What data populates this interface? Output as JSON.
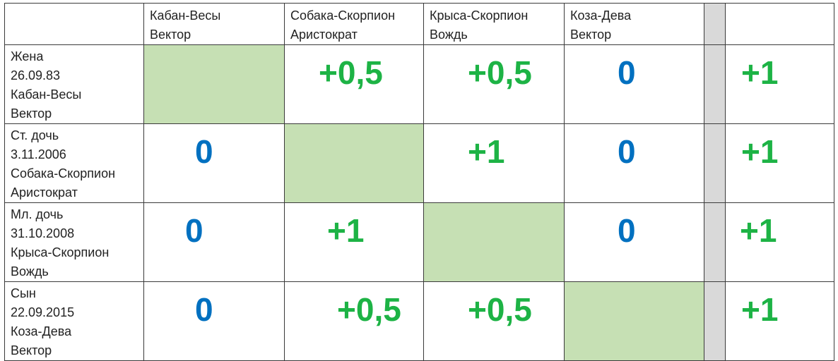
{
  "header": {
    "cols": [
      {
        "line1": "Кабан-Весы",
        "line2": "Вектор"
      },
      {
        "line1": "Собака-Скорпион",
        "line2": "Аристократ"
      },
      {
        "line1": "Крыса-Скорпион",
        "line2": "Вождь"
      },
      {
        "line1": "Коза-Дева",
        "line2": "Вектор"
      }
    ]
  },
  "rows": [
    {
      "label": [
        "Жена",
        "26.09.83",
        "Кабан-Весы",
        "Вектор"
      ],
      "values": [
        "",
        "+0,5",
        "+0,5",
        "0"
      ],
      "total": "+1"
    },
    {
      "label": [
        "Ст. дочь",
        "3.11.2006",
        "Собака-Скорпион",
        "Аристократ"
      ],
      "values": [
        "0",
        "",
        "+1",
        "0"
      ],
      "total": "+1"
    },
    {
      "label": [
        "Мл. дочь",
        "31.10.2008",
        "Крыса-Скорпион",
        "Вождь"
      ],
      "values": [
        "0",
        "+1",
        "",
        "0"
      ],
      "total": "+1"
    },
    {
      "label": [
        "Сын",
        "22.09.2015",
        "Коза-Дева",
        "Вектор"
      ],
      "values": [
        "0",
        "+0,5",
        "+0,5",
        ""
      ],
      "total": "+1"
    }
  ],
  "colors": {
    "zero": "#0070c0",
    "positive": "#1db345",
    "diagonal": "#c6e0b4",
    "separator": "#d9d9d9"
  }
}
